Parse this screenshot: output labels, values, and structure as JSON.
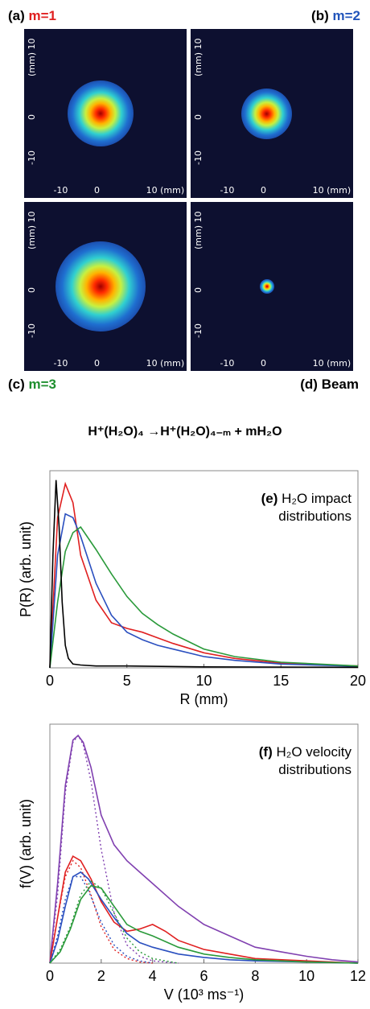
{
  "panels": [
    {
      "tag": "(a)",
      "label": "m=1",
      "color": "#e02020",
      "spot_size": 0.55
    },
    {
      "tag": "(b)",
      "label": "m=2",
      "color": "#2255bb",
      "spot_size": 0.42
    },
    {
      "tag": "(c)",
      "label": "m=3",
      "color": "#1f8f2f",
      "spot_size": 0.75
    },
    {
      "tag": "(d)",
      "label": "Beam",
      "color": "#000000",
      "spot_size": 0.12
    }
  ],
  "heatmap_ticks": {
    "x_ticks": [
      "-10",
      "0",
      "10 (mm)"
    ],
    "y_ticks": [
      "(mm) 10",
      "0",
      "-10"
    ]
  },
  "reaction": {
    "left": "H⁺(H₂O)₄",
    "arrow": "→",
    "right": "H⁺(H₂O)₄₋ₘ + mH₂O"
  },
  "chart_data": [
    {
      "type": "line",
      "title": "(e) H2O impact distributions",
      "title_tag": "(e)",
      "title_line1": "H₂O impact",
      "title_line2": "distributions",
      "xlabel": "R (mm)",
      "ylabel": "P(R) (arb. unit)",
      "xlim": [
        0,
        20
      ],
      "ylim": [
        0,
        1.05
      ],
      "xticks": [
        "0",
        "5",
        "10",
        "15",
        "20"
      ],
      "series": [
        {
          "color": "#e02020",
          "x": [
            0,
            0.5,
            1,
            1.5,
            2,
            3,
            4,
            5,
            6,
            7,
            8,
            10,
            12,
            15,
            20
          ],
          "y": [
            0,
            0.8,
            0.98,
            0.88,
            0.6,
            0.36,
            0.24,
            0.21,
            0.19,
            0.16,
            0.13,
            0.08,
            0.05,
            0.025,
            0.01
          ]
        },
        {
          "color": "#2a4fbf",
          "x": [
            0,
            0.5,
            1,
            1.5,
            2,
            3,
            4,
            5,
            6,
            7,
            8,
            10,
            12,
            15,
            20
          ],
          "y": [
            0,
            0.6,
            0.82,
            0.8,
            0.7,
            0.45,
            0.28,
            0.19,
            0.15,
            0.12,
            0.1,
            0.06,
            0.04,
            0.02,
            0.008
          ]
        },
        {
          "color": "#2a9a3a",
          "x": [
            0,
            0.5,
            1,
            1.5,
            2,
            3,
            4,
            5,
            6,
            7,
            8,
            10,
            12,
            15,
            20
          ],
          "y": [
            0,
            0.35,
            0.62,
            0.72,
            0.75,
            0.63,
            0.5,
            0.38,
            0.29,
            0.23,
            0.18,
            0.1,
            0.06,
            0.03,
            0.01
          ]
        },
        {
          "color": "#000000",
          "x": [
            0,
            0.2,
            0.4,
            0.6,
            0.8,
            1,
            1.2,
            1.5,
            2,
            3,
            5,
            10,
            20
          ],
          "y": [
            0,
            0.6,
            1.0,
            0.75,
            0.35,
            0.12,
            0.05,
            0.02,
            0.015,
            0.01,
            0.01,
            0.005,
            0.003
          ]
        }
      ]
    },
    {
      "type": "line",
      "title": "(f) H2O velocity distributions",
      "title_tag": "(f)",
      "title_line1": "H₂O velocity",
      "title_line2": "distributions",
      "xlabel": "V (10³ ms⁻¹)",
      "ylabel": "f(V) (arb. unit)",
      "xlim": [
        0,
        12
      ],
      "ylim": [
        0,
        1.05
      ],
      "xticks": [
        "0",
        "2",
        "4",
        "6",
        "8",
        "10",
        "12"
      ],
      "series": [
        {
          "color": "#8040b0",
          "style": "solid",
          "x": [
            0,
            0.3,
            0.6,
            0.9,
            1.1,
            1.3,
            1.6,
            2,
            2.5,
            3,
            3.5,
            4,
            5,
            6,
            7,
            8,
            9,
            10,
            11,
            12
          ],
          "y": [
            0,
            0.35,
            0.78,
            0.98,
            1.0,
            0.97,
            0.86,
            0.65,
            0.52,
            0.45,
            0.4,
            0.35,
            0.25,
            0.17,
            0.12,
            0.07,
            0.05,
            0.03,
            0.015,
            0.005
          ]
        },
        {
          "color": "#8040b0",
          "style": "dotted",
          "x": [
            0,
            0.3,
            0.6,
            0.9,
            1.1,
            1.3,
            1.6,
            2,
            2.5,
            3,
            3.5,
            4,
            5
          ],
          "y": [
            0,
            0.3,
            0.75,
            0.97,
            1.0,
            0.96,
            0.8,
            0.5,
            0.22,
            0.08,
            0.03,
            0.01,
            0
          ]
        },
        {
          "color": "#e02020",
          "style": "solid",
          "x": [
            0,
            0.3,
            0.6,
            0.9,
            1.2,
            1.6,
            2,
            2.5,
            3,
            3.5,
            4,
            4.5,
            5,
            6,
            7,
            8,
            10,
            12
          ],
          "y": [
            0,
            0.2,
            0.4,
            0.47,
            0.45,
            0.37,
            0.27,
            0.18,
            0.14,
            0.15,
            0.17,
            0.14,
            0.1,
            0.06,
            0.04,
            0.02,
            0.01,
            0
          ]
        },
        {
          "color": "#e02020",
          "style": "dotted",
          "x": [
            0,
            0.3,
            0.6,
            0.9,
            1.2,
            1.6,
            2,
            2.5,
            3,
            3.5,
            4
          ],
          "y": [
            0,
            0.2,
            0.38,
            0.45,
            0.42,
            0.3,
            0.16,
            0.06,
            0.02,
            0.005,
            0
          ]
        },
        {
          "color": "#2a4fbf",
          "style": "solid",
          "x": [
            0,
            0.3,
            0.6,
            0.9,
            1.2,
            1.5,
            2,
            2.5,
            3,
            3.5,
            4,
            5,
            6,
            7,
            8,
            10,
            12
          ],
          "y": [
            0,
            0.1,
            0.25,
            0.38,
            0.4,
            0.37,
            0.28,
            0.2,
            0.13,
            0.09,
            0.07,
            0.04,
            0.025,
            0.015,
            0.01,
            0.005,
            0
          ]
        },
        {
          "color": "#2a4fbf",
          "style": "dotted",
          "x": [
            0,
            0.3,
            0.6,
            0.9,
            1.2,
            1.5,
            2,
            2.5,
            3,
            3.5,
            4
          ],
          "y": [
            0,
            0.12,
            0.28,
            0.38,
            0.38,
            0.32,
            0.18,
            0.08,
            0.03,
            0.01,
            0
          ]
        },
        {
          "color": "#2a9a3a",
          "style": "solid",
          "x": [
            0,
            0.4,
            0.8,
            1.2,
            1.6,
            2,
            2.5,
            3,
            3.5,
            4,
            5,
            6,
            7,
            8,
            10,
            12
          ],
          "y": [
            0,
            0.05,
            0.15,
            0.28,
            0.34,
            0.33,
            0.25,
            0.17,
            0.14,
            0.12,
            0.07,
            0.04,
            0.025,
            0.015,
            0.005,
            0
          ]
        },
        {
          "color": "#2a9a3a",
          "style": "dotted",
          "x": [
            0,
            0.4,
            0.8,
            1.2,
            1.6,
            2,
            2.5,
            3,
            3.5,
            4,
            5
          ],
          "y": [
            0,
            0.06,
            0.16,
            0.3,
            0.36,
            0.33,
            0.22,
            0.11,
            0.05,
            0.02,
            0
          ]
        }
      ]
    }
  ]
}
